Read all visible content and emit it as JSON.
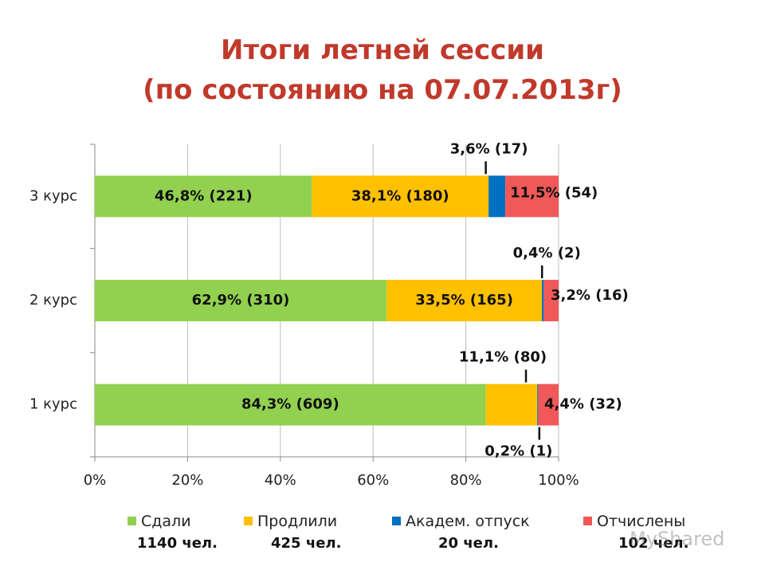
{
  "title_lines": [
    "Итоги летней сессии",
    "(по состоянию на 07.07.2013г)"
  ],
  "colors": {
    "title": "#c0392b",
    "passed": "#92d050",
    "extended": "#ffc000",
    "academic": "#0070c0",
    "expelled": "#f15858"
  },
  "chart_data": {
    "type": "bar",
    "orientation": "horizontal",
    "stacked": "percent",
    "categories": [
      "1 курс",
      "2 курс",
      "3 курс"
    ],
    "series": [
      {
        "name": "Сдали",
        "color": "#92d050",
        "values": [
          84.3,
          62.9,
          46.8
        ],
        "labels": [
          "84,3% (609)",
          "62,9% (310)",
          "46,8% (221)"
        ]
      },
      {
        "name": "Продлили",
        "color": "#ffc000",
        "values": [
          11.1,
          33.5,
          38.1
        ],
        "labels": [
          "11,1% (80)",
          "33,5% (165)",
          "38,1% (180)"
        ]
      },
      {
        "name": "Академ. отпуск",
        "color": "#0070c0",
        "values": [
          0.2,
          0.4,
          3.6
        ],
        "labels": [
          "0,2% (1)",
          "0,4% (2)",
          "3,6% (17)"
        ]
      },
      {
        "name": "Отчислены",
        "color": "#f15858",
        "values": [
          4.4,
          3.2,
          11.5
        ],
        "labels": [
          "4,4% (32)",
          "3,2% (16)",
          "11,5% (54)"
        ]
      }
    ],
    "xlim": [
      0,
      100
    ],
    "x_ticks": [
      "0%",
      "20%",
      "40%",
      "60%",
      "80%",
      "100%"
    ],
    "grid": true,
    "legend": "bottom"
  },
  "legend_counts": [
    "1140 чел.",
    "425 чел.",
    "20 чел.",
    "102 чел."
  ],
  "watermark": "MyShared"
}
